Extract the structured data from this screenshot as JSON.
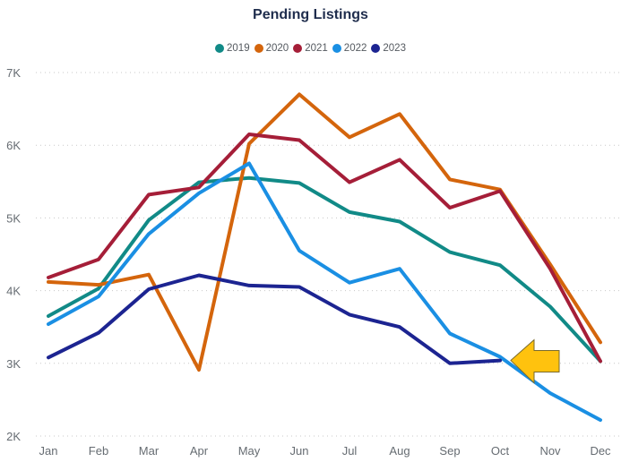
{
  "chart_data": {
    "type": "line",
    "title": "Pending Listings",
    "xlabel": "",
    "ylabel": "",
    "categories": [
      "Jan",
      "Feb",
      "Mar",
      "Apr",
      "May",
      "Jun",
      "Jul",
      "Aug",
      "Sep",
      "Oct",
      "Nov",
      "Dec"
    ],
    "ylim": [
      2000,
      7000
    ],
    "yticks": [
      2000,
      3000,
      4000,
      5000,
      6000,
      7000
    ],
    "ytick_labels": [
      "2K",
      "3K",
      "4K",
      "5K",
      "6K",
      "7K"
    ],
    "grid": "horizontal-dotted",
    "legend_position": "top-center",
    "series": [
      {
        "name": "2019",
        "color": "#118a87",
        "values": [
          3650,
          4030,
          4970,
          5490,
          5550,
          5480,
          5080,
          4950,
          4530,
          4350,
          3780,
          3030
        ]
      },
      {
        "name": "2020",
        "color": "#d4650c",
        "values": [
          4120,
          4080,
          4220,
          2910,
          6020,
          6700,
          6110,
          6430,
          5530,
          5390,
          4360,
          3290
        ]
      },
      {
        "name": "2021",
        "color": "#a51e38",
        "values": [
          4180,
          4430,
          5320,
          5420,
          6150,
          6070,
          5490,
          5800,
          5140,
          5370,
          4300,
          3030
        ]
      },
      {
        "name": "2022",
        "color": "#1a8fe3",
        "values": [
          3540,
          3920,
          4780,
          5340,
          5750,
          4550,
          4110,
          4300,
          3410,
          3090,
          2590,
          2220
        ]
      },
      {
        "name": "2023",
        "color": "#1c2491",
        "values": [
          3080,
          3420,
          4020,
          4210,
          4070,
          4050,
          3670,
          3500,
          3000,
          3040,
          null,
          null
        ]
      }
    ],
    "annotation": {
      "type": "arrow",
      "color": "#ffc20e",
      "points_to": {
        "series": "2023",
        "category": "Oct",
        "value": 3040
      }
    }
  }
}
